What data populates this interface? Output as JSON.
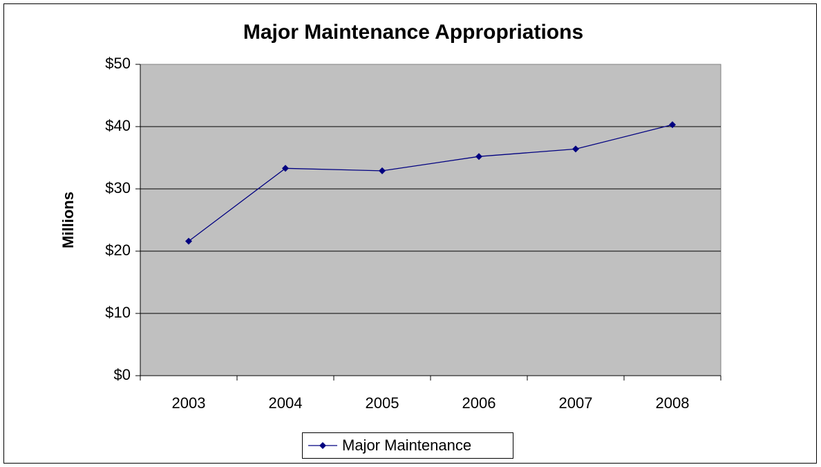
{
  "chart_data": {
    "type": "line",
    "title": "Major Maintenance Appropriations",
    "y_label": "Millions",
    "categories": [
      "2003",
      "2004",
      "2005",
      "2006",
      "2007",
      "2008"
    ],
    "series": [
      {
        "name": "Major Maintenance",
        "color": "#000080",
        "values": [
          21.6,
          33.3,
          32.9,
          35.2,
          36.4,
          40.3
        ]
      }
    ],
    "ylim": [
      0,
      50
    ],
    "yticks": [
      {
        "value": 0,
        "label": "$0"
      },
      {
        "value": 10,
        "label": "$10"
      },
      {
        "value": 20,
        "label": "$20"
      },
      {
        "value": 30,
        "label": "$30"
      },
      {
        "value": 40,
        "label": "$40"
      },
      {
        "value": 50,
        "label": "$50"
      }
    ],
    "grid": true,
    "legend": "bottom"
  }
}
